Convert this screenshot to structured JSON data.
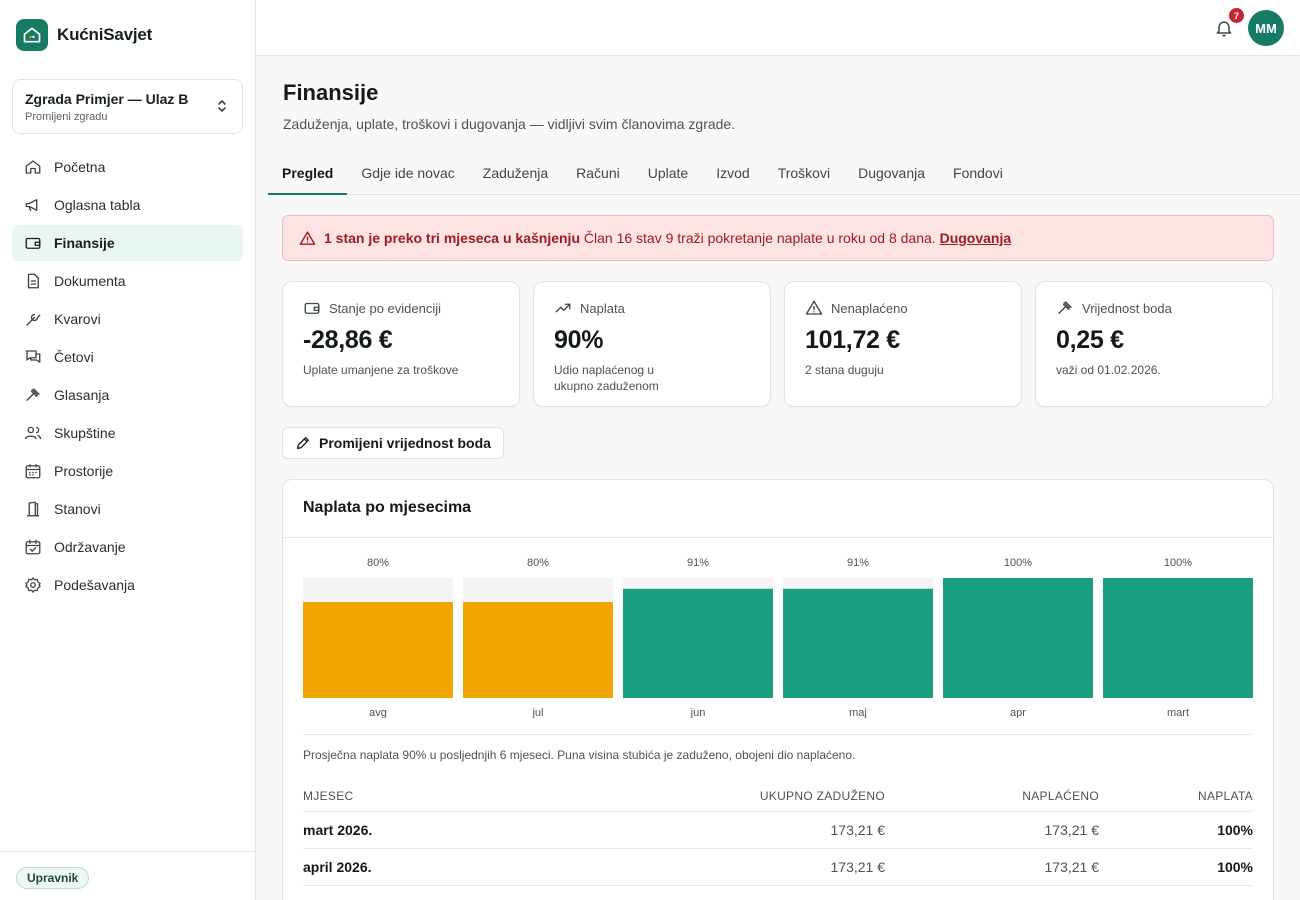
{
  "brand": {
    "name": "KućniSavjet",
    "logo_icon": "home-icon"
  },
  "building": {
    "name": "Zgrada Primjer — Ulaz B",
    "switch_label": "Promijeni zgradu"
  },
  "nav": [
    {
      "label": "Početna",
      "icon": "home-icon",
      "active": false
    },
    {
      "label": "Oglasna tabla",
      "icon": "megaphone-icon",
      "active": false
    },
    {
      "label": "Finansije",
      "icon": "wallet-icon",
      "active": true
    },
    {
      "label": "Dokumenta",
      "icon": "document-icon",
      "active": false
    },
    {
      "label": "Kvarovi",
      "icon": "wrench-icon",
      "active": false
    },
    {
      "label": "Četovi",
      "icon": "chat-icon",
      "active": false
    },
    {
      "label": "Glasanja",
      "icon": "gavel-icon",
      "active": false
    },
    {
      "label": "Skupštine",
      "icon": "users-icon",
      "active": false
    },
    {
      "label": "Prostorije",
      "icon": "calendar-icon",
      "active": false
    },
    {
      "label": "Stanovi",
      "icon": "door-icon",
      "active": false
    },
    {
      "label": "Održavanje",
      "icon": "calendar-check-icon",
      "active": false
    },
    {
      "label": "Podešavanja",
      "icon": "gear-icon",
      "active": false
    }
  ],
  "role": "Upravnik",
  "header": {
    "notifications": "7",
    "avatar_initials": "MM"
  },
  "page": {
    "title": "Finansije",
    "subtitle": "Zaduženja, uplate, troškovi i dugovanja — vidljivi svim članovima zgrade."
  },
  "tabs": [
    {
      "label": "Pregled",
      "active": true
    },
    {
      "label": "Gdje ide novac",
      "active": false
    },
    {
      "label": "Zaduženja",
      "active": false
    },
    {
      "label": "Računi",
      "active": false
    },
    {
      "label": "Uplate",
      "active": false
    },
    {
      "label": "Izvod",
      "active": false
    },
    {
      "label": "Troškovi",
      "active": false
    },
    {
      "label": "Dugovanja",
      "active": false
    },
    {
      "label": "Fondovi",
      "active": false
    }
  ],
  "alert": {
    "bold": "1 stan je preko tri mjeseca u kašnjenju",
    "text": "Član 16 stav 9 traži pokretanje naplate u roku od 8 dana.",
    "link": "Dugovanja"
  },
  "stats": [
    {
      "icon": "wallet-icon",
      "label": "Stanje po evidenciji",
      "value": "-28,86 €",
      "desc": "Uplate umanjene za troškove"
    },
    {
      "icon": "trending-up-icon",
      "label": "Naplata",
      "value": "90%",
      "desc": "Udio naplaćenog u ukupno zaduženom"
    },
    {
      "icon": "warning-icon",
      "label": "Nenaplaćeno",
      "value": "101,72 €",
      "desc": "2 stana duguju"
    },
    {
      "icon": "gavel-icon",
      "label": "Vrijednost boda",
      "value": "0,25 €",
      "desc": "važi od 01.02.2026."
    }
  ],
  "edit_button": "Promijeni vrijednost boda",
  "chart_card": {
    "title": "Naplata po mjesecima",
    "note": "Prosječna naplata 90% u posljednjih 6 mjeseci. Puna visina stubića je zaduženo, obojeni dio naplaćeno."
  },
  "chart_data": {
    "type": "bar",
    "categories": [
      "avg",
      "jul",
      "jun",
      "maj",
      "apr",
      "mart"
    ],
    "values": [
      80,
      80,
      91,
      91,
      100,
      100
    ],
    "labels": [
      "80%",
      "80%",
      "91%",
      "91%",
      "100%",
      "100%"
    ],
    "ylim": [
      0,
      100
    ],
    "colors": {
      "below_threshold": "#f0a500",
      "good": "#1a9e80",
      "track": "#f3f4f3"
    }
  },
  "table": {
    "headers": [
      "MJESEC",
      "UKUPNO ZADUŽENO",
      "NAPLAĆENO",
      "NAPLATA"
    ],
    "rows": [
      [
        "mart 2026.",
        "173,21 €",
        "173,21 €",
        "100%"
      ],
      [
        "april 2026.",
        "173,21 €",
        "173,21 €",
        "100%"
      ]
    ]
  }
}
